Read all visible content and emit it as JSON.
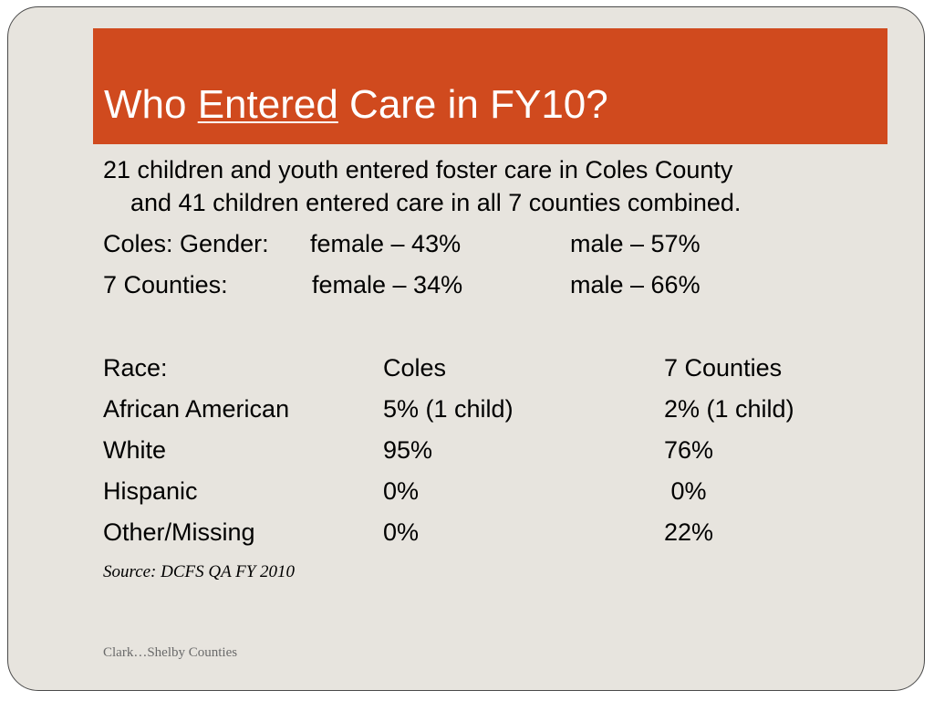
{
  "slide": {
    "title": {
      "before": "Who ",
      "underlined": "Entered",
      "after": " Care in FY10?"
    },
    "intro": {
      "line1": "21 children and youth entered foster care in Coles County",
      "line2": "and 41 children entered care in all 7 counties combined."
    },
    "gender": [
      {
        "label": "Coles: Gender:",
        "female": "female – 43%",
        "male": "male –  57%"
      },
      {
        "label": "7 Counties:",
        "female": "female – 34%",
        "male": "male –  66%"
      }
    ],
    "race_table": {
      "headers": [
        "Race:",
        "Coles",
        "7 Counties"
      ],
      "rows": [
        [
          "African American",
          "5%  (1 child)",
          "2% (1 child)"
        ],
        [
          "White",
          "95%",
          "76%"
        ],
        [
          "Hispanic",
          "0%",
          " 0%"
        ],
        [
          "Other/Missing",
          "0%",
          "22%"
        ]
      ]
    },
    "source": "Source: DCFS QA FY 2010",
    "footer": "Clark…Shelby Counties"
  }
}
